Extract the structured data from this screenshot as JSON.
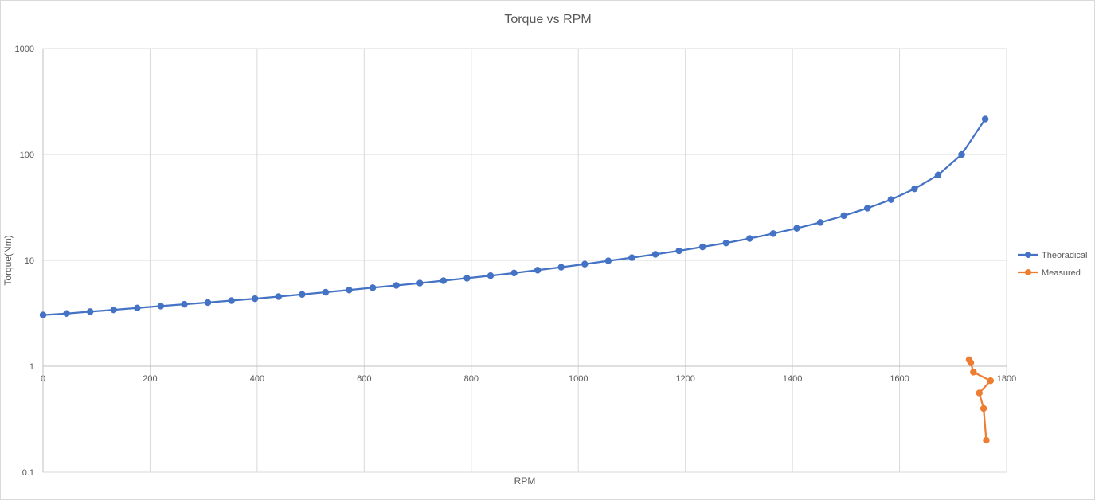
{
  "chart_data": {
    "type": "line",
    "title": "Torque vs RPM",
    "xlabel": "RPM",
    "ylabel": "Torque(Nm)",
    "xlim": [
      0,
      1800
    ],
    "ylim": [
      0.1,
      1000
    ],
    "yscale": "log",
    "x_ticks": [
      "0",
      "200",
      "400",
      "600",
      "800",
      "1000",
      "1200",
      "1400",
      "1600",
      "1800"
    ],
    "y_ticks": [
      "0.1",
      "1",
      "10",
      "100",
      "1000"
    ],
    "grid": true,
    "legend_position": "right",
    "series": [
      {
        "name": "Theoradical",
        "color": "#4472C4",
        "points": [
          [
            0,
            3.05
          ],
          [
            44,
            3.15
          ],
          [
            88,
            3.28
          ],
          [
            132,
            3.41
          ],
          [
            176,
            3.55
          ],
          [
            220,
            3.7
          ],
          [
            264,
            3.85
          ],
          [
            308,
            4.0
          ],
          [
            352,
            4.17
          ],
          [
            396,
            4.35
          ],
          [
            440,
            4.55
          ],
          [
            484,
            4.77
          ],
          [
            528,
            5.0
          ],
          [
            572,
            5.25
          ],
          [
            616,
            5.52
          ],
          [
            660,
            5.8
          ],
          [
            704,
            6.1
          ],
          [
            748,
            6.43
          ],
          [
            792,
            6.78
          ],
          [
            836,
            7.17
          ],
          [
            880,
            7.6
          ],
          [
            924,
            8.08
          ],
          [
            968,
            8.62
          ],
          [
            1012,
            9.22
          ],
          [
            1056,
            9.9
          ],
          [
            1100,
            10.6
          ],
          [
            1144,
            11.4
          ],
          [
            1188,
            12.3
          ],
          [
            1232,
            13.4
          ],
          [
            1276,
            14.6
          ],
          [
            1320,
            16.1
          ],
          [
            1364,
            17.9
          ],
          [
            1408,
            20.1
          ],
          [
            1452,
            22.8
          ],
          [
            1496,
            26.4
          ],
          [
            1540,
            31.1
          ],
          [
            1584,
            37.5
          ],
          [
            1628,
            47.4
          ],
          [
            1672,
            64.0
          ],
          [
            1716,
            100
          ],
          [
            1760,
            216
          ]
        ]
      },
      {
        "name": "Measured",
        "color": "#ED7D31",
        "points": [
          [
            1730,
            1.15
          ],
          [
            1733,
            1.08
          ],
          [
            1738,
            0.88
          ],
          [
            1770,
            0.73
          ],
          [
            1749,
            0.56
          ],
          [
            1757,
            0.4
          ],
          [
            1762,
            0.2
          ]
        ]
      }
    ]
  }
}
